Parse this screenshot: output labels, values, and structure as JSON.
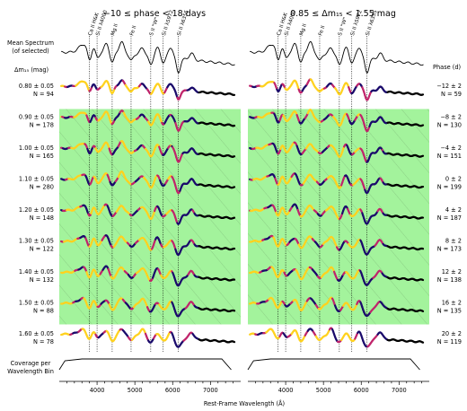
{
  "chart_data": {
    "type": "line",
    "panels": [
      {
        "title": "−10 ≤ phase < 18 days"
      },
      {
        "title": "0.85 ≤ Δm₁₅ < 1.55 mag"
      }
    ],
    "top_row_label": [
      "Mean Spectrum",
      "(of selected)"
    ],
    "left_header": "Δm₁₅ (mag)",
    "right_header": "Phase (d)",
    "bottom_row_label": [
      "Coverage per",
      "Wavelength Bin"
    ],
    "xlabel": "Rest-Frame Wavelength (Å)",
    "xlim": [
      3000,
      7800
    ],
    "xticks": [
      {
        "value": 4000,
        "label": "4000"
      },
      {
        "value": 5000,
        "label": "5000"
      },
      {
        "value": 6000,
        "label": "6000"
      },
      {
        "value": 7000,
        "label": "7000"
      }
    ],
    "spectral_features": [
      {
        "name": "Ca II H&K",
        "wavelength": 3800
      },
      {
        "name": "Si II λ4000",
        "wavelength": 4000
      },
      {
        "name": "Mg II",
        "wavelength": 4400
      },
      {
        "name": "Fe II",
        "wavelength": 4900
      },
      {
        "name": "S II \"W\"",
        "wavelength": 5420
      },
      {
        "name": "Si II λ5972",
        "wavelength": 5750
      },
      {
        "name": "Si II λ6355",
        "wavelength": 6150
      }
    ],
    "left_rows": [
      {
        "label": "0.80 ± 0.05",
        "n": "N = 94",
        "highlighted": false
      },
      {
        "label": "0.90 ± 0.05",
        "n": "N = 178",
        "highlighted": true
      },
      {
        "label": "1.00 ± 0.05",
        "n": "N = 165",
        "highlighted": true
      },
      {
        "label": "1.10 ± 0.05",
        "n": "N = 280",
        "highlighted": true
      },
      {
        "label": "1.20 ± 0.05",
        "n": "N = 148",
        "highlighted": true
      },
      {
        "label": "1.30 ± 0.05",
        "n": "N = 122",
        "highlighted": true
      },
      {
        "label": "1.40 ± 0.05",
        "n": "N = 132",
        "highlighted": true
      },
      {
        "label": "1.50 ± 0.05",
        "n": "N = 88",
        "highlighted": true
      },
      {
        "label": "1.60 ± 0.05",
        "n": "N = 78",
        "highlighted": false
      }
    ],
    "right_rows": [
      {
        "label": "−12 ± 2",
        "n": "N = 59"
      },
      {
        "label": "−8 ± 2",
        "n": "N = 130"
      },
      {
        "label": "−4 ± 2",
        "n": "N = 151"
      },
      {
        "label": "0 ± 2",
        "n": "N = 199"
      },
      {
        "label": "4 ± 2",
        "n": "N = 187"
      },
      {
        "label": "8 ± 2",
        "n": "N = 173"
      },
      {
        "label": "12 ± 2",
        "n": "N = 138"
      },
      {
        "label": "16 ± 2",
        "n": "N = 135"
      },
      {
        "label": "20 ± 2",
        "n": "N = 119"
      }
    ],
    "colors": {
      "highlight": "#a3f39c",
      "hatch": "#8fcf89",
      "variance_low": "#1a0a6b",
      "variance_mid": "#c0246b",
      "variance_high": "#ffd21f",
      "line": "#000000"
    }
  }
}
